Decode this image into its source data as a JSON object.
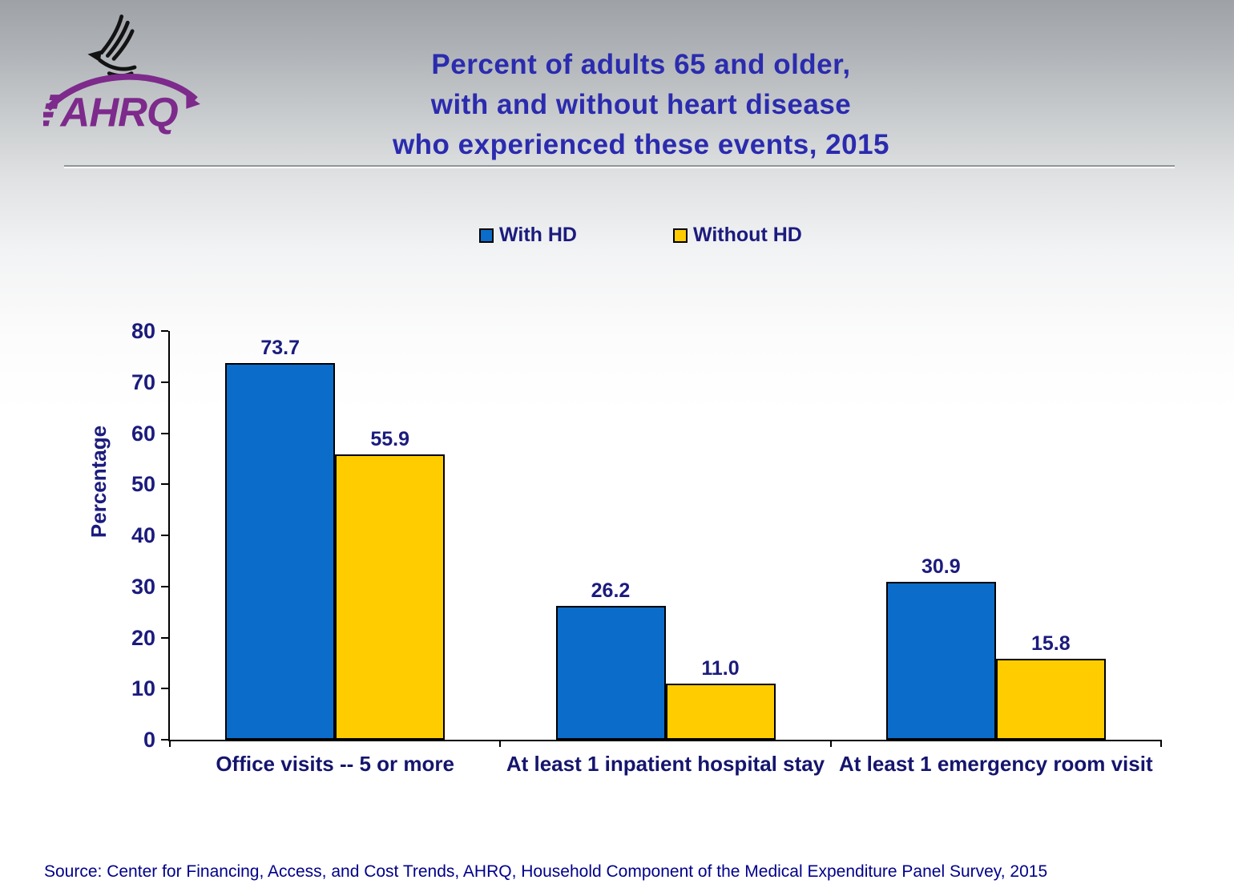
{
  "slide": {
    "title_lines": [
      "Percent of adults 65 and older,",
      "with and without heart disease",
      "who experienced these events, 2015"
    ],
    "source": "Source: Center for Financing, Access, and Cost Trends, AHRQ, Household Component of the Medical Expenditure Panel Survey, 2015",
    "logo_text": "AHRQ"
  },
  "legend": {
    "items": [
      {
        "label": "With HD",
        "color": "#0b6dc9"
      },
      {
        "label": "Without HD",
        "color": "#ffcc00"
      }
    ]
  },
  "chart_data": {
    "type": "bar",
    "title": "Percent of adults 65 and older, with and without heart disease who experienced these events, 2015",
    "categories": [
      "Office visits -- 5 or more",
      "At least 1 inpatient hospital stay",
      "At least 1 emergency room visit"
    ],
    "series": [
      {
        "name": "With HD",
        "color": "#0b6dc9",
        "values": [
          73.7,
          26.2,
          30.9
        ]
      },
      {
        "name": "Without HD",
        "color": "#ffcc00",
        "values": [
          55.9,
          11.0,
          15.8
        ]
      }
    ],
    "xlabel": "",
    "ylabel": "Percentage",
    "ylim": [
      0,
      80
    ],
    "ytick_step": 10,
    "value_labels": true,
    "value_label_format": "one-decimal",
    "grid": false,
    "legend_position": "top-center",
    "bar_border_color": "#000000",
    "text_color": "#1b1b7e"
  },
  "colors": {
    "title": "#2b2baf",
    "chart_text": "#1b1b7e",
    "source_text": "#00008b",
    "ahrq_purple": "#7d2a8c",
    "eagle_black": "#131313",
    "axis": "#000000"
  }
}
